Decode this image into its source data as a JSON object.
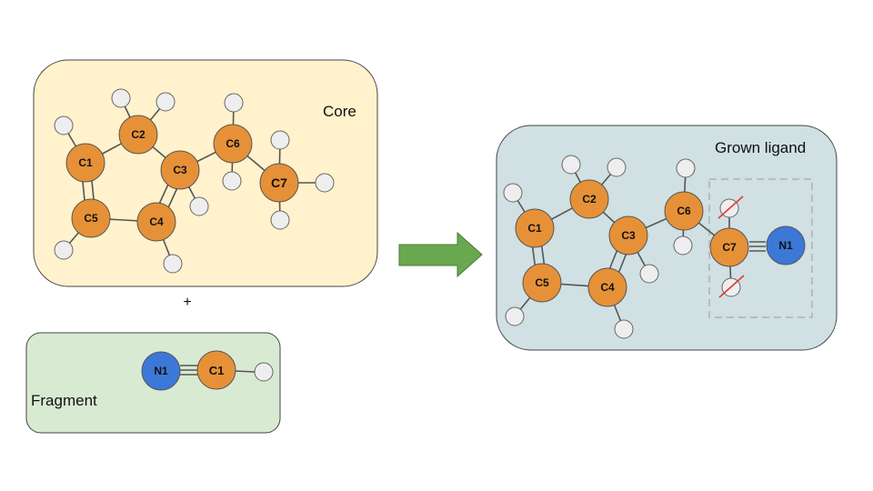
{
  "labels": {
    "core": "Core",
    "fragment": "Fragment",
    "grown": "Grown ligand",
    "plus": "+"
  },
  "colors": {
    "core_panel": "#fff2cc",
    "fragment_panel": "#d9ead3",
    "grown_panel": "#d0e0e3",
    "carbon": "#e69138",
    "nitrogen": "#3c78d8",
    "hydrogen": "#eeeeee",
    "arrow": "#6aa84f",
    "removed_mark": "#e53935"
  },
  "core": {
    "atoms": [
      "C1",
      "C2",
      "C3",
      "C4",
      "C5",
      "C6",
      "C7"
    ]
  },
  "fragment": {
    "atoms": [
      "N1",
      "C1"
    ]
  },
  "grown": {
    "atoms": [
      "C1",
      "C2",
      "C3",
      "C4",
      "C5",
      "C6",
      "C7",
      "N1"
    ]
  }
}
